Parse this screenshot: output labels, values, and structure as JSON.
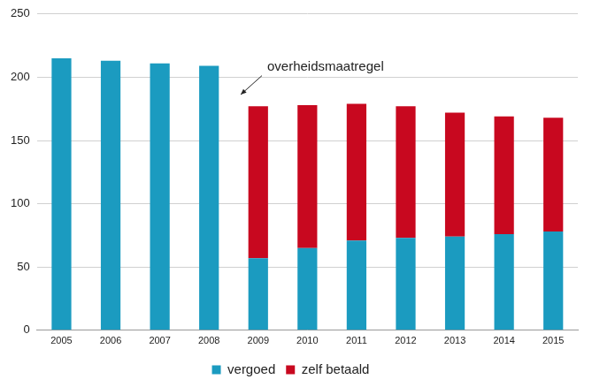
{
  "chart_data": {
    "type": "bar",
    "stacked": true,
    "annotation": "overheidsmaatregel",
    "categories": [
      "2005",
      "2006",
      "2007",
      "2008",
      "2009",
      "2010",
      "2011",
      "2012",
      "2013",
      "2014",
      "2015"
    ],
    "series": [
      {
        "name": "vergoed",
        "color": "#1b9bc0",
        "values": [
          215,
          213,
          211,
          209,
          57,
          65,
          71,
          73,
          74,
          76,
          78
        ]
      },
      {
        "name": "zelf betaald",
        "color": "#c8081f",
        "values": [
          null,
          null,
          null,
          null,
          120,
          113,
          108,
          104,
          98,
          93,
          90
        ]
      }
    ],
    "ylim": [
      0,
      250
    ],
    "yticks": [
      0,
      50,
      100,
      150,
      200,
      250
    ],
    "grid": true,
    "legend": "bottom"
  }
}
